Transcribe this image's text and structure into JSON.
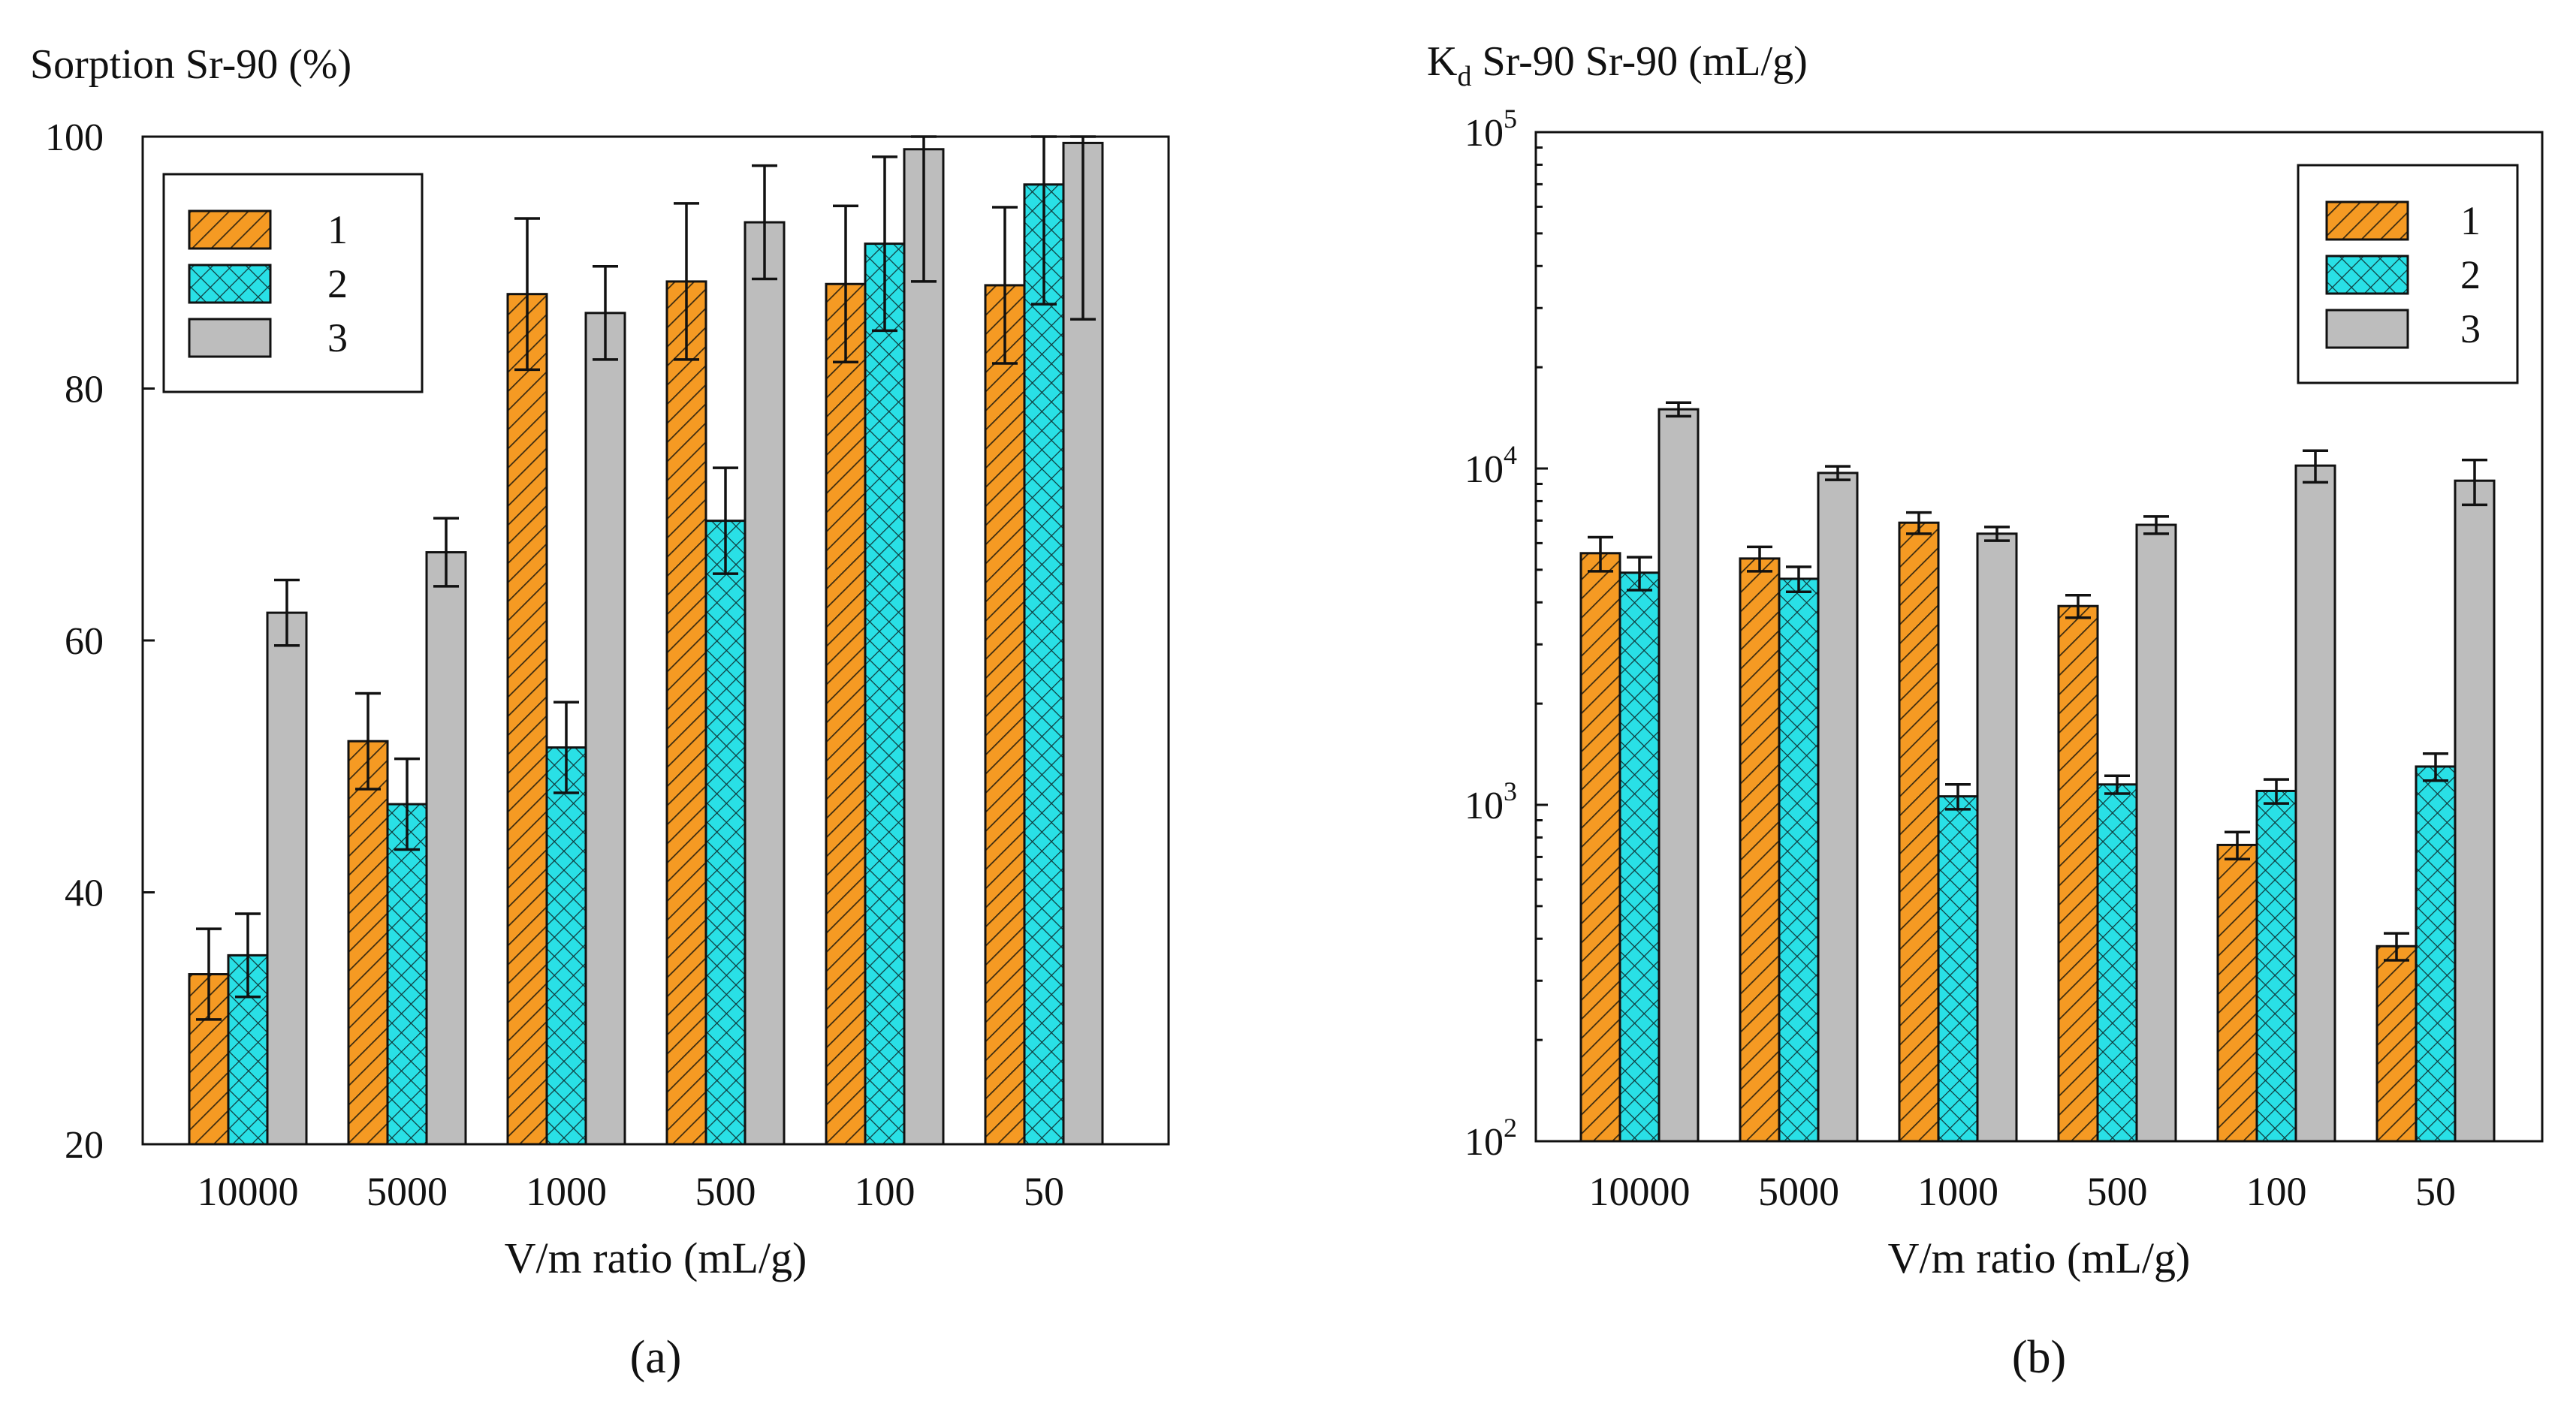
{
  "colors": {
    "series1": "#f59a23",
    "series2": "#29e0e6",
    "series3": "#bdbdbd",
    "series1_hatch": "#3a2a10",
    "series2_hatch": "#0e3a3c"
  },
  "chart_data": [
    {
      "id": "a",
      "type": "bar",
      "panel_label": "(a)",
      "title": "Sorption Sr-90 (%)",
      "xlabel": "V/m ratio (mL/g)",
      "ylabel": "",
      "yscale": "linear",
      "ylim": [
        20,
        100
      ],
      "yticks": [
        "20",
        "40",
        "60",
        "80",
        "100"
      ],
      "legend_position": "top-left",
      "categories": [
        "10000",
        "5000",
        "1000",
        "500",
        "100",
        "50"
      ],
      "series": [
        {
          "name": "1",
          "values": [
            33.5,
            52,
            87.5,
            88.5,
            88.3,
            88.2
          ],
          "errors": [
            3.6,
            3.8,
            6,
            6.2,
            6.2,
            6.2
          ]
        },
        {
          "name": "2",
          "values": [
            35,
            47,
            51.5,
            69.5,
            91.5,
            96.2
          ],
          "errors": [
            3.3,
            3.6,
            3.6,
            4.2,
            6.9,
            9.5
          ]
        },
        {
          "name": "3",
          "values": [
            62.2,
            67,
            86,
            93.2,
            99,
            99.5
          ],
          "errors": [
            2.6,
            2.7,
            3.7,
            4.5,
            10.5,
            14
          ]
        }
      ]
    },
    {
      "id": "b",
      "type": "bar",
      "panel_label": "(b)",
      "title_main": "K",
      "title_sub": "d",
      "title_rest": " Sr-90 Sr-90 (mL/g)",
      "xlabel": "V/m ratio (mL/g)",
      "ylabel": "",
      "yscale": "log",
      "ylim": [
        100,
        100000
      ],
      "yticks": [
        {
          "base": "10",
          "exp": "2",
          "value": 100
        },
        {
          "base": "10",
          "exp": "3",
          "value": 1000
        },
        {
          "base": "10",
          "exp": "4",
          "value": 10000
        },
        {
          "base": "10",
          "exp": "5",
          "value": 100000
        }
      ],
      "legend_position": "top-right",
      "categories": [
        "10000",
        "5000",
        "1000",
        "500",
        "100",
        "50"
      ],
      "series": [
        {
          "name": "1",
          "values": [
            5600,
            5400,
            6900,
            3900,
            760,
            380
          ],
          "errors": [
            650,
            450,
            500,
            300,
            70,
            35
          ]
        },
        {
          "name": "2",
          "values": [
            4900,
            4700,
            1060,
            1150,
            1100,
            1300
          ],
          "errors": [
            550,
            400,
            90,
            70,
            90,
            120
          ]
        },
        {
          "name": "3",
          "values": [
            15000,
            9700,
            6400,
            6800,
            10200,
            9200
          ],
          "errors": [
            700,
            450,
            300,
            400,
            1100,
            1400
          ]
        }
      ]
    }
  ]
}
